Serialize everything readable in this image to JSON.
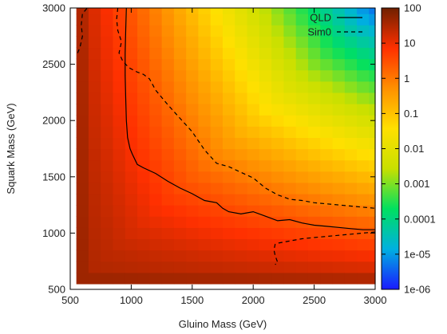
{
  "chart_data": {
    "type": "heatmap",
    "xlabel": "Gluino Mass (GeV)",
    "ylabel": "Squark Mass (GeV)",
    "xlim": [
      500,
      3000
    ],
    "ylim": [
      500,
      3000
    ],
    "x_ticks": [
      "500",
      "1000",
      "1500",
      "2000",
      "2500",
      "3000"
    ],
    "y_ticks": [
      "500",
      "1000",
      "1500",
      "2000",
      "2500",
      "3000"
    ],
    "x_tick_values": [
      500,
      1000,
      1500,
      2000,
      2500,
      3000
    ],
    "y_tick_values": [
      500,
      1000,
      1500,
      2000,
      2500,
      3000
    ],
    "grid_step": 100,
    "colorbar": {
      "scale": "log",
      "range": [
        1e-06,
        100
      ],
      "ticks": [
        "100",
        "10",
        "1",
        "0.1",
        "0.01",
        "0.001",
        "0.0001",
        "1e-05",
        "1e-06"
      ],
      "tick_values": [
        100,
        10,
        1,
        0.1,
        0.01,
        0.001,
        0.0001,
        1e-05,
        1e-06
      ],
      "colors": [
        "#1a1aff",
        "#00b0e0",
        "#00e060",
        "#c8e000",
        "#ffe000",
        "#ff9000",
        "#ff3000",
        "#702000"
      ]
    },
    "legend": {
      "placement": "top-right",
      "entries": [
        {
          "label": "QLD",
          "style": "solid"
        },
        {
          "label": "Sim0",
          "style": "dashed"
        }
      ]
    },
    "series": [
      {
        "name": "QLD",
        "style": "solid",
        "points": [
          [
            960,
            3000
          ],
          [
            955,
            2800
          ],
          [
            950,
            2600
          ],
          [
            950,
            2400
          ],
          [
            955,
            2200
          ],
          [
            960,
            2000
          ],
          [
            970,
            1850
          ],
          [
            990,
            1750
          ],
          [
            1010,
            1700
          ],
          [
            1050,
            1610
          ],
          [
            1100,
            1580
          ],
          [
            1200,
            1530
          ],
          [
            1300,
            1460
          ],
          [
            1400,
            1400
          ],
          [
            1500,
            1350
          ],
          [
            1600,
            1290
          ],
          [
            1700,
            1270
          ],
          [
            1750,
            1220
          ],
          [
            1800,
            1190
          ],
          [
            1900,
            1170
          ],
          [
            2000,
            1190
          ],
          [
            2100,
            1150
          ],
          [
            2200,
            1110
          ],
          [
            2300,
            1120
          ],
          [
            2400,
            1090
          ],
          [
            2500,
            1070
          ],
          [
            2600,
            1060
          ],
          [
            2700,
            1050
          ],
          [
            2800,
            1040
          ],
          [
            2900,
            1030
          ],
          [
            3000,
            1030
          ]
        ]
      },
      {
        "name": "Sim0",
        "style": "dashed",
        "points": [
          [
            890,
            3000
          ],
          [
            880,
            2900
          ],
          [
            890,
            2800
          ],
          [
            920,
            2700
          ],
          [
            900,
            2600
          ],
          [
            930,
            2530
          ],
          [
            980,
            2470
          ],
          [
            1050,
            2430
          ],
          [
            1100,
            2410
          ],
          [
            1150,
            2370
          ],
          [
            1200,
            2270
          ],
          [
            1300,
            2140
          ],
          [
            1400,
            2020
          ],
          [
            1500,
            1900
          ],
          [
            1600,
            1740
          ],
          [
            1700,
            1620
          ],
          [
            1800,
            1590
          ],
          [
            1900,
            1540
          ],
          [
            2000,
            1490
          ],
          [
            2100,
            1400
          ],
          [
            2200,
            1340
          ],
          [
            2300,
            1300
          ],
          [
            2400,
            1290
          ],
          [
            2500,
            1270
          ],
          [
            2600,
            1260
          ],
          [
            2700,
            1250
          ],
          [
            2800,
            1240
          ],
          [
            2900,
            1230
          ],
          [
            3000,
            1220
          ]
        ]
      },
      {
        "name": "Sim0",
        "style": "dashed",
        "points": [
          [
            3000,
            1010
          ],
          [
            2900,
            1000
          ],
          [
            2800,
            990
          ],
          [
            2700,
            980
          ],
          [
            2600,
            970
          ],
          [
            2500,
            960
          ],
          [
            2400,
            950
          ],
          [
            2300,
            930
          ],
          [
            2200,
            910
          ],
          [
            2180,
            900
          ],
          [
            2170,
            850
          ],
          [
            2180,
            800
          ],
          [
            2200,
            740
          ],
          [
            2180,
            720
          ]
        ]
      },
      {
        "name": "Sim0",
        "style": "dashed",
        "points": [
          [
            560,
            2600
          ],
          [
            580,
            2650
          ],
          [
            600,
            2750
          ],
          [
            590,
            2850
          ],
          [
            600,
            2950
          ],
          [
            640,
            3000
          ]
        ]
      }
    ]
  }
}
